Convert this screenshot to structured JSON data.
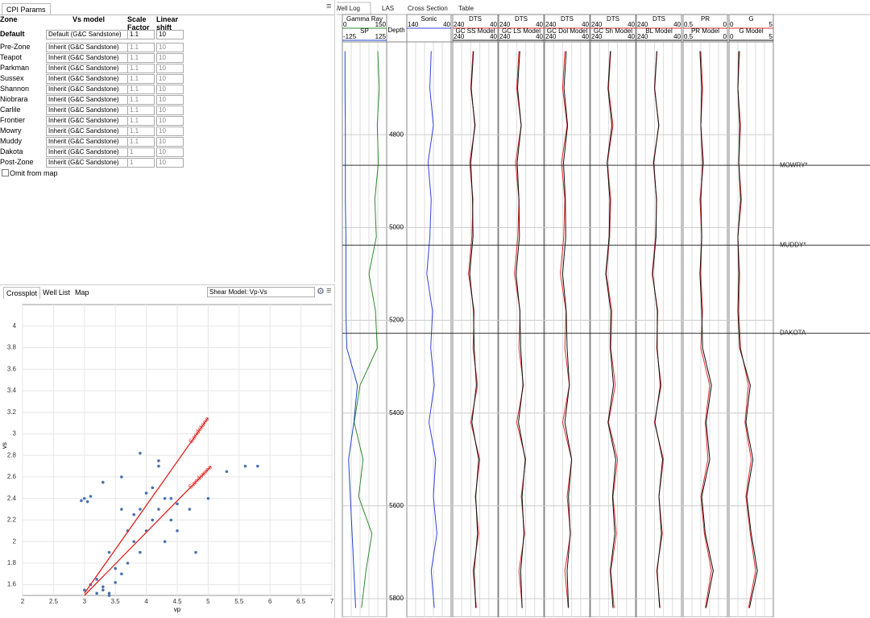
{
  "left_panel": {
    "tab": "CPI Params",
    "headers": [
      "Zone",
      "Vs model",
      "Scale Factor",
      "Linear shift"
    ],
    "rows": [
      [
        "Default",
        "Default (G&C Sandstone)",
        1.1,
        10
      ],
      [
        "Pre-Zone",
        "Inherit (G&C Sandstone)",
        1.1,
        10
      ],
      [
        "Teapot",
        "Inherit (G&C Sandstone)",
        1.1,
        10
      ],
      [
        "Parkman",
        "Inherit (G&C Sandstone)",
        1.1,
        10
      ],
      [
        "Sussex",
        "Inherit (G&C Sandstone)",
        1.1,
        10
      ],
      [
        "Shannon",
        "Inherit (G&C Sandstone)",
        1.1,
        10
      ],
      [
        "Niobrara",
        "Inherit (G&C Sandstone)",
        1.1,
        10
      ],
      [
        "Carlile",
        "Inherit (G&C Sandstone)",
        1.1,
        10
      ],
      [
        "Frontier",
        "Inherit (G&C Sandstone)",
        1.1,
        10
      ],
      [
        "Mowry",
        "Inherit (G&C Sandstone)",
        1.1,
        10
      ],
      [
        "Muddy",
        "Inherit (G&C Sandstone)",
        1.1,
        10
      ],
      [
        "Dakota",
        "Inherit (G&C Sandstone)",
        1,
        10
      ],
      [
        "Post-Zone",
        "Inherit (G&C Sandstone)",
        1,
        10
      ]
    ],
    "omit_label": "Omit from map"
  },
  "crossplot_panel": {
    "tabs": [
      "Crossplot",
      "Well List",
      "Map"
    ],
    "model_select": "Shear Model: Vp-Vs"
  },
  "chart_data": [
    {
      "type": "scatter",
      "x_label": "vp",
      "y_label": "vs",
      "color": "#4a72b0",
      "xlim": [
        2,
        7
      ],
      "ylim": [
        1.5,
        4.2
      ],
      "xticks": [
        2,
        2.5,
        3,
        3.5,
        4,
        4.5,
        5,
        5.5,
        6,
        6.5,
        7
      ],
      "yticks": [
        1.6,
        1.8,
        2,
        2.2,
        2.4,
        2.6,
        2.8,
        3,
        3.2,
        3.4,
        3.6,
        3.8,
        4
      ],
      "grid": true,
      "x": [
        3.0,
        3.1,
        3.2,
        3.3,
        3.4,
        3.5,
        3.6,
        3.7,
        3.8,
        3.9,
        4.0,
        4.1,
        4.2,
        4.3,
        4.4,
        4.5,
        3.2,
        3.5,
        3.8,
        4.1,
        4.4,
        3.3,
        3.6,
        3.9,
        4.2,
        4.5,
        3.4,
        3.7,
        4.0,
        4.3,
        2.95,
        3.0,
        3.05,
        3.1,
        5.0,
        5.3,
        5.6,
        5.8,
        4.7,
        4.8,
        3.9,
        4.2,
        3.6,
        3.3,
        3.4
      ],
      "y": [
        1.55,
        1.6,
        1.52,
        1.58,
        1.5,
        1.62,
        1.7,
        1.8,
        2.0,
        1.9,
        2.1,
        2.2,
        2.3,
        2.4,
        2.2,
        2.1,
        1.65,
        1.75,
        2.25,
        2.5,
        2.4,
        2.55,
        2.6,
        2.3,
        2.75,
        2.35,
        1.9,
        2.1,
        2.45,
        2.0,
        2.38,
        2.4,
        2.37,
        2.42,
        2.4,
        2.65,
        2.7,
        2.7,
        2.3,
        1.9,
        2.82,
        2.7,
        2.3,
        1.55,
        1.52
      ],
      "lines": [
        {
          "name": "Sandstone",
          "color": "#e02020",
          "x": [
            3,
            5
          ],
          "y": [
            1.52,
            3.15
          ]
        },
        {
          "name": "Sandstone",
          "color": "#e02020",
          "x": [
            3,
            5.05
          ],
          "y": [
            1.5,
            2.7
          ]
        }
      ]
    },
    {
      "type": "well-log",
      "tabs": [
        "Well Log",
        "LAS",
        "Cross Section",
        "Table"
      ],
      "depth_label": "Depth",
      "ylim": [
        4600,
        5840
      ],
      "yticks": [
        4800,
        5000,
        5200,
        5400,
        5600,
        5800
      ],
      "depths": [
        4620,
        4700,
        4780,
        4860,
        4940,
        5020,
        5100,
        5180,
        5260,
        5340,
        5420,
        5500,
        5580,
        5660,
        5740,
        5820
      ],
      "tracks": [
        {
          "curves": [
            {
              "name": "Gamma Ray",
              "color": "#2e8b2e",
              "xlim": [
                0,
                150
              ],
              "values": [
                120,
                125,
                118,
                122,
                110,
                115,
                90,
                112,
                118,
                60,
                40,
                70,
                55,
                100,
                80,
                65
              ]
            },
            {
              "name": "SP",
              "color": "#2244cc",
              "xlim": [
                -125,
                125
              ],
              "values": [
                -110,
                -110,
                -108,
                -108,
                -108,
                -105,
                -105,
                -105,
                -100,
                -40,
                -60,
                -90,
                -80,
                -70,
                -60,
                -50
              ]
            }
          ]
        },
        {
          "curves": [
            {
              "name": "Sonic",
              "color": "#3344dd",
              "xlim": [
                140,
                40
              ],
              "values": [
                85,
                88,
                80,
                92,
                85,
                88,
                95,
                82,
                86,
                78,
                90,
                75,
                80,
                72,
                85,
                78
              ]
            }
          ]
        },
        {
          "title": "DTS",
          "curves": [
            {
              "color": "#e03030",
              "xlim": [
                240,
                40
              ],
              "values": [
                150,
                160,
                140,
                165,
                150,
                155,
                170,
                145,
                150,
                130,
                160,
                120,
                140,
                125,
                150,
                135
              ]
            },
            {
              "name": "GC SS Model",
              "color": "#111111",
              "xlim": [
                240,
                40
              ],
              "values": [
                148,
                158,
                142,
                160,
                152,
                150,
                165,
                148,
                145,
                135,
                155,
                125,
                138,
                130,
                145,
                138
              ]
            }
          ]
        },
        {
          "title": "DTS",
          "curves": [
            {
              "color": "#e03030",
              "xlim": [
                240,
                40
              ],
              "values": [
                150,
                160,
                140,
                165,
                150,
                155,
                170,
                145,
                150,
                130,
                160,
                120,
                140,
                125,
                150,
                135
              ]
            },
            {
              "name": "GC LS Model",
              "color": "#111111",
              "xlim": [
                240,
                40
              ],
              "values": [
                146,
                156,
                140,
                158,
                150,
                148,
                163,
                146,
                142,
                132,
                152,
                122,
                136,
                128,
                142,
                136
              ]
            }
          ]
        },
        {
          "title": "DTS",
          "curves": [
            {
              "color": "#e03030",
              "xlim": [
                240,
                40
              ],
              "values": [
                150,
                160,
                140,
                165,
                150,
                155,
                170,
                145,
                150,
                130,
                160,
                120,
                140,
                125,
                150,
                135
              ]
            },
            {
              "name": "GC Dol Model",
              "color": "#111111",
              "xlim": [
                240,
                40
              ],
              "values": [
                144,
                154,
                138,
                156,
                148,
                146,
                160,
                144,
                140,
                130,
                150,
                120,
                134,
                126,
                140,
                134
              ]
            }
          ]
        },
        {
          "title": "DTS",
          "curves": [
            {
              "color": "#e03030",
              "xlim": [
                240,
                40
              ],
              "values": [
                150,
                160,
                140,
                165,
                150,
                155,
                170,
                145,
                150,
                130,
                160,
                120,
                140,
                125,
                150,
                135
              ]
            },
            {
              "name": "GC Sh Model",
              "color": "#111111",
              "xlim": [
                240,
                40
              ],
              "values": [
                152,
                162,
                145,
                166,
                154,
                157,
                172,
                150,
                152,
                138,
                162,
                128,
                142,
                132,
                152,
                140
              ]
            }
          ]
        },
        {
          "title": "DTS",
          "curves": [
            {
              "color": "#e03030",
              "xlim": [
                240,
                40
              ],
              "values": [
                150,
                160,
                140,
                165,
                150,
                155,
                170,
                145,
                150,
                130,
                160,
                120,
                140,
                125,
                150,
                135
              ]
            },
            {
              "name": "BL Model",
              "color": "#111111",
              "xlim": [
                240,
                40
              ],
              "values": [
                149,
                159,
                141,
                163,
                151,
                153,
                168,
                147,
                148,
                134,
                158,
                124,
                140,
                129,
                148,
                137
              ]
            }
          ]
        },
        {
          "title": "PR",
          "curves": [
            {
              "color": "#e03030",
              "xlim": [
                0.5,
                0
              ],
              "values": [
                0.3,
                0.28,
                0.3,
                0.27,
                0.31,
                0.29,
                0.3,
                0.28,
                0.3,
                0.2,
                0.25,
                0.22,
                0.3,
                0.26,
                0.18,
                0.25
              ]
            },
            {
              "name": "PR Model",
              "color": "#111111",
              "xlim": [
                0.5,
                0
              ],
              "values": [
                0.31,
                0.29,
                0.3,
                0.28,
                0.3,
                0.29,
                0.31,
                0.29,
                0.28,
                0.18,
                0.24,
                0.2,
                0.29,
                0.25,
                0.16,
                0.24
              ]
            }
          ]
        },
        {
          "title": "G",
          "curves": [
            {
              "color": "#e03030",
              "xlim": [
                0,
                5
              ],
              "values": [
                1.2,
                1.0,
                1.3,
                1.1,
                1.4,
                1.0,
                1.2,
                1.1,
                1.3,
                2.2,
                1.8,
                2.5,
                1.9,
                2.4,
                3.0,
                2.2
              ]
            },
            {
              "name": "G Model",
              "color": "#111111",
              "xlim": [
                0,
                5
              ],
              "values": [
                1.1,
                1.0,
                1.2,
                1.1,
                1.3,
                1.0,
                1.1,
                1.0,
                1.2,
                2.4,
                1.9,
                2.7,
                2.0,
                2.5,
                3.2,
                2.3
              ]
            }
          ]
        }
      ],
      "tops": [
        {
          "name": "MOWRY*",
          "depth": 4866
        },
        {
          "name": "MUDDY*",
          "depth": 5038
        },
        {
          "name": "DAKOTA",
          "depth": 5228
        }
      ]
    }
  ]
}
